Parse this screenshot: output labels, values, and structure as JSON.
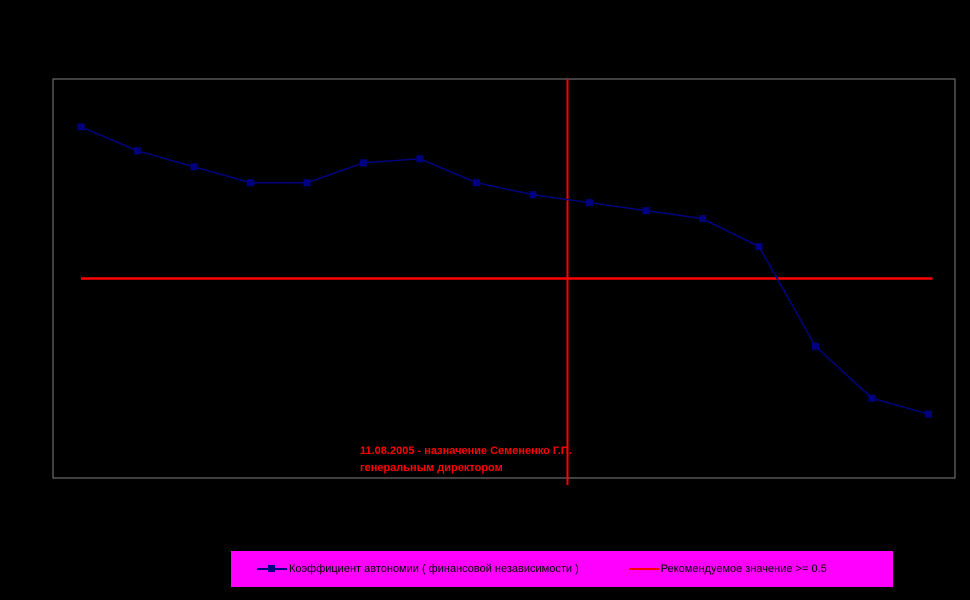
{
  "chart_data": {
    "type": "line",
    "title": "",
    "xlabel": "",
    "ylabel": "",
    "ylim": [
      0,
      1
    ],
    "grid": false,
    "legend_position": "bottom",
    "series": [
      {
        "name": "Коэффициент автономии ( финансовой независимости )",
        "color": "#000080",
        "marker": "square",
        "values": [
          0.88,
          0.82,
          0.78,
          0.74,
          0.74,
          0.79,
          0.8,
          0.74,
          0.71,
          0.69,
          0.67,
          0.65,
          0.58,
          0.33,
          0.2,
          0.16
        ]
      },
      {
        "name": "Рекомендуемое значение >= 0.5",
        "color": "#ff0000",
        "values": [
          0.5,
          0.5,
          0.5,
          0.5,
          0.5,
          0.5,
          0.5,
          0.5,
          0.5,
          0.5,
          0.5,
          0.5,
          0.5,
          0.5,
          0.5,
          0.5
        ]
      }
    ],
    "event_marker": {
      "color": "#ff0000",
      "after_point_index": 9,
      "label_lines": [
        "11.08.2005 - назначение Семененко Г.П.",
        "генеральным директором"
      ]
    }
  },
  "colors": {
    "background": "#000000",
    "plot_border": "#808080",
    "legend_background": "#ff00ff",
    "annotation": "#ff0000"
  }
}
